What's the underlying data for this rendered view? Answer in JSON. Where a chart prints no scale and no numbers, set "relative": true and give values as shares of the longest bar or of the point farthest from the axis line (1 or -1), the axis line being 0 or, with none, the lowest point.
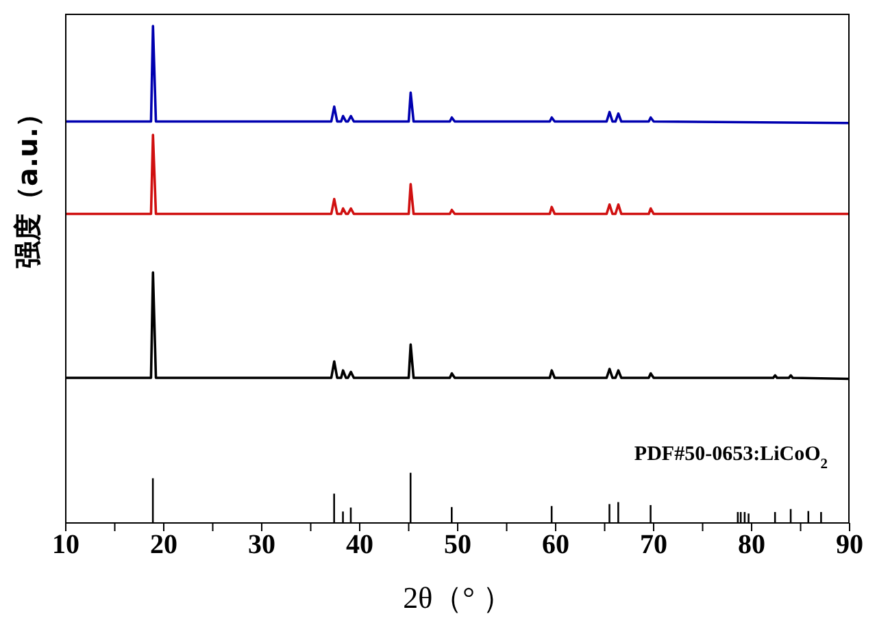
{
  "chart_data": {
    "type": "line",
    "relative": true,
    "xlabel": "2θ（°  ）",
    "ylabel": "强度（a.u.）",
    "xlim": [
      10,
      90
    ],
    "xticks": [
      10,
      {
        "value": 15,
        "label": null
      },
      20,
      {
        "value": 25,
        "label": null
      },
      30,
      {
        "value": 35,
        "label": null
      },
      40,
      {
        "value": 45,
        "label": null
      },
      50,
      {
        "value": 55,
        "label": null
      },
      60,
      {
        "value": 65,
        "label": null
      },
      70,
      {
        "value": 75,
        "label": null
      },
      80,
      {
        "value": 85,
        "label": null
      },
      90
    ],
    "grid": false,
    "marker": "none",
    "line_style": "solid",
    "annotations": [
      "PDF#50-0653:LiCoO$_{2}$"
    ],
    "series": [
      {
        "color": "#0000b0",
        "x": [
          10,
          18.7,
          18.9,
          19.2,
          37.1,
          37.4,
          37.7,
          38.1,
          38.3,
          38.6,
          38.8,
          39.1,
          39.4,
          45.0,
          45.2,
          45.5,
          49.2,
          49.4,
          49.7,
          59.4,
          59.6,
          59.9,
          65.2,
          65.5,
          65.8,
          66.1,
          66.4,
          66.7,
          69.5,
          69.7,
          70.0,
          90
        ],
        "values": [
          0.808,
          0.808,
          1.0,
          0.808,
          0.808,
          0.838,
          0.808,
          0.808,
          0.819,
          0.808,
          0.808,
          0.819,
          0.808,
          0.808,
          0.866,
          0.808,
          0.808,
          0.816,
          0.808,
          0.808,
          0.816,
          0.808,
          0.808,
          0.827,
          0.808,
          0.808,
          0.824,
          0.808,
          0.808,
          0.816,
          0.808,
          0.805
        ]
      },
      {
        "color": "#d01010",
        "x": [
          10,
          18.7,
          18.9,
          19.2,
          37.1,
          37.4,
          37.7,
          38.1,
          38.3,
          38.6,
          38.8,
          39.1,
          39.4,
          45.0,
          45.2,
          45.5,
          49.2,
          49.4,
          49.7,
          59.4,
          59.6,
          59.9,
          65.2,
          65.5,
          65.8,
          66.1,
          66.4,
          66.7,
          69.5,
          69.7,
          70.0,
          90
        ],
        "values": [
          0.622,
          0.622,
          0.781,
          0.622,
          0.622,
          0.652,
          0.622,
          0.622,
          0.633,
          0.622,
          0.622,
          0.633,
          0.622,
          0.622,
          0.682,
          0.622,
          0.622,
          0.63,
          0.622,
          0.622,
          0.636,
          0.622,
          0.622,
          0.641,
          0.622,
          0.622,
          0.641,
          0.622,
          0.622,
          0.633,
          0.622,
          0.622
        ]
      },
      {
        "color": "#000000",
        "x": [
          10,
          18.7,
          18.9,
          19.2,
          37.1,
          37.4,
          37.7,
          38.1,
          38.3,
          38.6,
          38.8,
          39.1,
          39.4,
          45.0,
          45.2,
          45.5,
          49.2,
          49.4,
          49.7,
          59.4,
          59.6,
          59.9,
          65.2,
          65.5,
          65.8,
          66.1,
          66.4,
          66.7,
          69.5,
          69.7,
          70.0,
          82.2,
          82.4,
          82.6,
          83.8,
          84.0,
          84.2,
          90
        ],
        "values": [
          0.292,
          0.292,
          0.504,
          0.292,
          0.292,
          0.325,
          0.292,
          0.292,
          0.307,
          0.292,
          0.292,
          0.304,
          0.292,
          0.292,
          0.359,
          0.292,
          0.292,
          0.301,
          0.292,
          0.292,
          0.307,
          0.292,
          0.292,
          0.31,
          0.292,
          0.292,
          0.307,
          0.292,
          0.292,
          0.301,
          0.292,
          0.292,
          0.297,
          0.292,
          0.292,
          0.297,
          0.292,
          0.29
        ]
      },
      {
        "type": "bar",
        "color": "#000000",
        "x": [
          18.9,
          37.4,
          38.3,
          39.1,
          45.2,
          49.4,
          59.6,
          65.5,
          66.4,
          69.7,
          78.6,
          78.9,
          79.3,
          79.7,
          82.4,
          84.0,
          85.8,
          87.1
        ],
        "values": [
          0.09,
          0.059,
          0.023,
          0.031,
          0.101,
          0.032,
          0.034,
          0.038,
          0.042,
          0.036,
          0.022,
          0.022,
          0.022,
          0.019,
          0.022,
          0.028,
          0.024,
          0.022
        ]
      }
    ]
  }
}
